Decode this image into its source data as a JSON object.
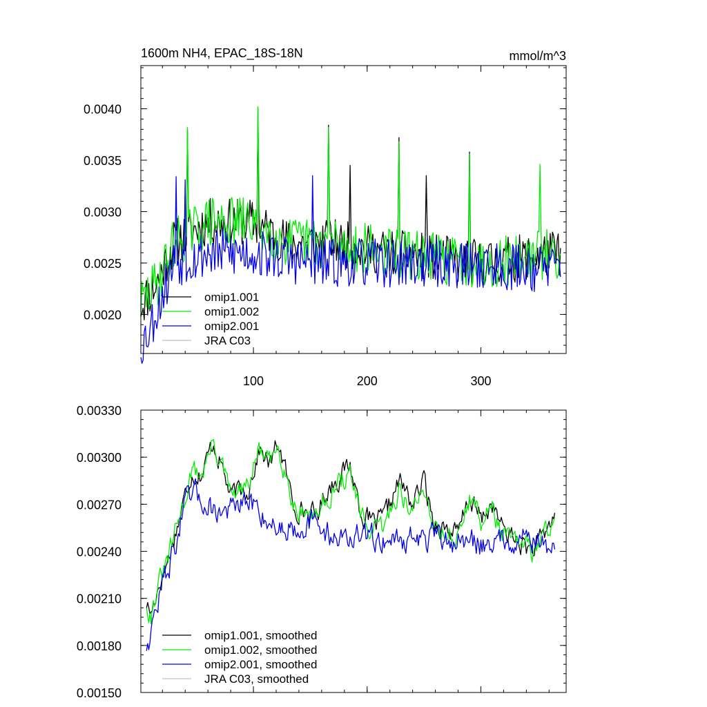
{
  "chart_data": [
    {
      "id": "top",
      "type": "line",
      "title": "1600m NH4, EPAC_18S-18N",
      "units": "mmol/m^3",
      "xlim": [
        1,
        375
      ],
      "ylim": [
        0.00162,
        0.00442
      ],
      "xticks": [
        100,
        200,
        300
      ],
      "xtick_labels": [
        "100",
        "200",
        "300"
      ],
      "yticks": [
        0.002,
        0.0025,
        0.003,
        0.0035,
        0.004
      ],
      "ytick_labels": [
        "0.0020",
        "0.0025",
        "0.0030",
        "0.0035",
        "0.0040"
      ],
      "legend_position": "bottom-left",
      "series": [
        {
          "name": "omip1.001",
          "color": "#000000",
          "start": 1,
          "step": 1,
          "seed": 11,
          "base": [
            [
              1,
              0.0021
            ],
            [
              15,
              0.0023
            ],
            [
              30,
              0.0027
            ],
            [
              60,
              0.0029
            ],
            [
              100,
              0.0029
            ],
            [
              130,
              0.0027
            ],
            [
              170,
              0.0027
            ],
            [
              220,
              0.0026
            ],
            [
              300,
              0.0025
            ],
            [
              370,
              0.0026
            ]
          ],
          "amp": 0.00023,
          "spikes": [
            [
              42,
              0.0038
            ],
            [
              104,
              0.004
            ],
            [
              166,
              0.00384
            ],
            [
              185,
              0.00345
            ],
            [
              228,
              0.00372
            ],
            [
              252,
              0.00335
            ],
            [
              290,
              0.00358
            ]
          ]
        },
        {
          "name": "omip1.002",
          "color": "#00ee00",
          "start": 1,
          "step": 1,
          "seed": 29,
          "base": [
            [
              1,
              0.0021
            ],
            [
              15,
              0.0023
            ],
            [
              30,
              0.0027
            ],
            [
              60,
              0.0029
            ],
            [
              100,
              0.0029
            ],
            [
              130,
              0.0027
            ],
            [
              170,
              0.0027
            ],
            [
              220,
              0.0026
            ],
            [
              300,
              0.0025
            ],
            [
              370,
              0.0026
            ]
          ],
          "amp": 0.00025,
          "spikes": [
            [
              42,
              0.00382
            ],
            [
              104,
              0.00402
            ],
            [
              166,
              0.00382
            ],
            [
              228,
              0.00368
            ],
            [
              290,
              0.00356
            ],
            [
              352,
              0.00346
            ]
          ]
        },
        {
          "name": "omip2.001",
          "color": "#0000ee",
          "start": 1,
          "step": 1,
          "seed": 53,
          "base": [
            [
              1,
              0.0017
            ],
            [
              10,
              0.0019
            ],
            [
              30,
              0.0025
            ],
            [
              60,
              0.0026
            ],
            [
              100,
              0.0026
            ],
            [
              150,
              0.0025
            ],
            [
              250,
              0.0025
            ],
            [
              370,
              0.00245
            ]
          ],
          "amp": 0.00024,
          "spikes": [
            [
              32,
              0.00334
            ],
            [
              40,
              0.00331
            ],
            [
              152,
              0.00335
            ]
          ]
        },
        {
          "name": "JRA C03",
          "color": "#c0c0c0",
          "start": 1,
          "step": 1,
          "seed": 0,
          "base": [],
          "amp": 0,
          "spikes": []
        }
      ]
    },
    {
      "id": "bottom",
      "type": "line",
      "title": "",
      "units": "",
      "xlim": [
        1,
        375
      ],
      "ylim": [
        0.0015,
        0.0033
      ],
      "xticks": [
        100,
        200,
        300
      ],
      "xtick_labels": [
        "",
        "",
        ""
      ],
      "yticks": [
        0.0015,
        0.0018,
        0.0021,
        0.0024,
        0.0027,
        0.003,
        0.0033
      ],
      "ytick_labels": [
        "0.00150",
        "0.00180",
        "0.00210",
        "0.00240",
        "0.00270",
        "0.00300",
        "0.00330"
      ],
      "legend_position": "bottom-left",
      "series": [
        {
          "name": "omip1.001, smoothed",
          "color": "#000000",
          "start": 6,
          "end": 365,
          "step": 1,
          "seed": 17,
          "base": [
            [
              6,
              0.00207
            ],
            [
              10,
              0.002
            ],
            [
              15,
              0.00215
            ],
            [
              25,
              0.00235
            ],
            [
              40,
              0.00275
            ],
            [
              45,
              0.0029
            ],
            [
              55,
              0.0029
            ],
            [
              65,
              0.0031
            ],
            [
              72,
              0.00295
            ],
            [
              80,
              0.00275
            ],
            [
              95,
              0.0028
            ],
            [
              105,
              0.00305
            ],
            [
              115,
              0.00295
            ],
            [
              122,
              0.0031
            ],
            [
              135,
              0.0027
            ],
            [
              155,
              0.00262
            ],
            [
              165,
              0.0028
            ],
            [
              185,
              0.00295
            ],
            [
              195,
              0.00265
            ],
            [
              205,
              0.00257
            ],
            [
              215,
              0.0026
            ],
            [
              228,
              0.00285
            ],
            [
              240,
              0.0027
            ],
            [
              250,
              0.00285
            ],
            [
              258,
              0.0026
            ],
            [
              280,
              0.0025
            ],
            [
              290,
              0.00275
            ],
            [
              300,
              0.0026
            ],
            [
              310,
              0.0027
            ],
            [
              318,
              0.00255
            ],
            [
              330,
              0.00248
            ],
            [
              345,
              0.0024
            ],
            [
              355,
              0.00248
            ],
            [
              365,
              0.00265
            ]
          ],
          "amp": 6e-05
        },
        {
          "name": "omip1.002, smoothed",
          "color": "#00ee00",
          "start": 6,
          "end": 365,
          "step": 1,
          "seed": 31,
          "base": [
            [
              6,
              0.00207
            ],
            [
              10,
              0.002
            ],
            [
              15,
              0.00215
            ],
            [
              25,
              0.00235
            ],
            [
              40,
              0.00275
            ],
            [
              45,
              0.0029
            ],
            [
              55,
              0.0029
            ],
            [
              65,
              0.0031
            ],
            [
              72,
              0.00295
            ],
            [
              80,
              0.00275
            ],
            [
              95,
              0.0028
            ],
            [
              105,
              0.00305
            ],
            [
              115,
              0.00295
            ],
            [
              122,
              0.0031
            ],
            [
              135,
              0.0027
            ],
            [
              155,
              0.00262
            ],
            [
              165,
              0.00275
            ],
            [
              185,
              0.0029
            ],
            [
              195,
              0.0026
            ],
            [
              205,
              0.00252
            ],
            [
              215,
              0.00255
            ],
            [
              228,
              0.0028
            ],
            [
              240,
              0.00265
            ],
            [
              250,
              0.0028
            ],
            [
              258,
              0.00258
            ],
            [
              280,
              0.00248
            ],
            [
              290,
              0.00275
            ],
            [
              300,
              0.0026
            ],
            [
              310,
              0.00268
            ],
            [
              318,
              0.00252
            ],
            [
              330,
              0.00245
            ],
            [
              345,
              0.0024
            ],
            [
              355,
              0.00248
            ],
            [
              365,
              0.00265
            ]
          ],
          "amp": 6e-05
        },
        {
          "name": "omip2.001, smoothed",
          "color": "#0000ee",
          "start": 6,
          "end": 365,
          "step": 1,
          "seed": 47,
          "base": [
            [
              6,
              0.0018
            ],
            [
              12,
              0.00195
            ],
            [
              20,
              0.0022
            ],
            [
              30,
              0.0024
            ],
            [
              40,
              0.0027
            ],
            [
              50,
              0.00275
            ],
            [
              70,
              0.00265
            ],
            [
              100,
              0.0027
            ],
            [
              120,
              0.00255
            ],
            [
              150,
              0.00258
            ],
            [
              170,
              0.0025
            ],
            [
              200,
              0.00248
            ],
            [
              250,
              0.00248
            ],
            [
              300,
              0.00245
            ],
            [
              340,
              0.0025
            ],
            [
              365,
              0.0024
            ]
          ],
          "amp": 7e-05
        },
        {
          "name": "JRA C03, smoothed",
          "color": "#c0c0c0",
          "start": 6,
          "end": 365,
          "step": 1,
          "seed": 0,
          "base": [],
          "amp": 0
        }
      ]
    }
  ]
}
